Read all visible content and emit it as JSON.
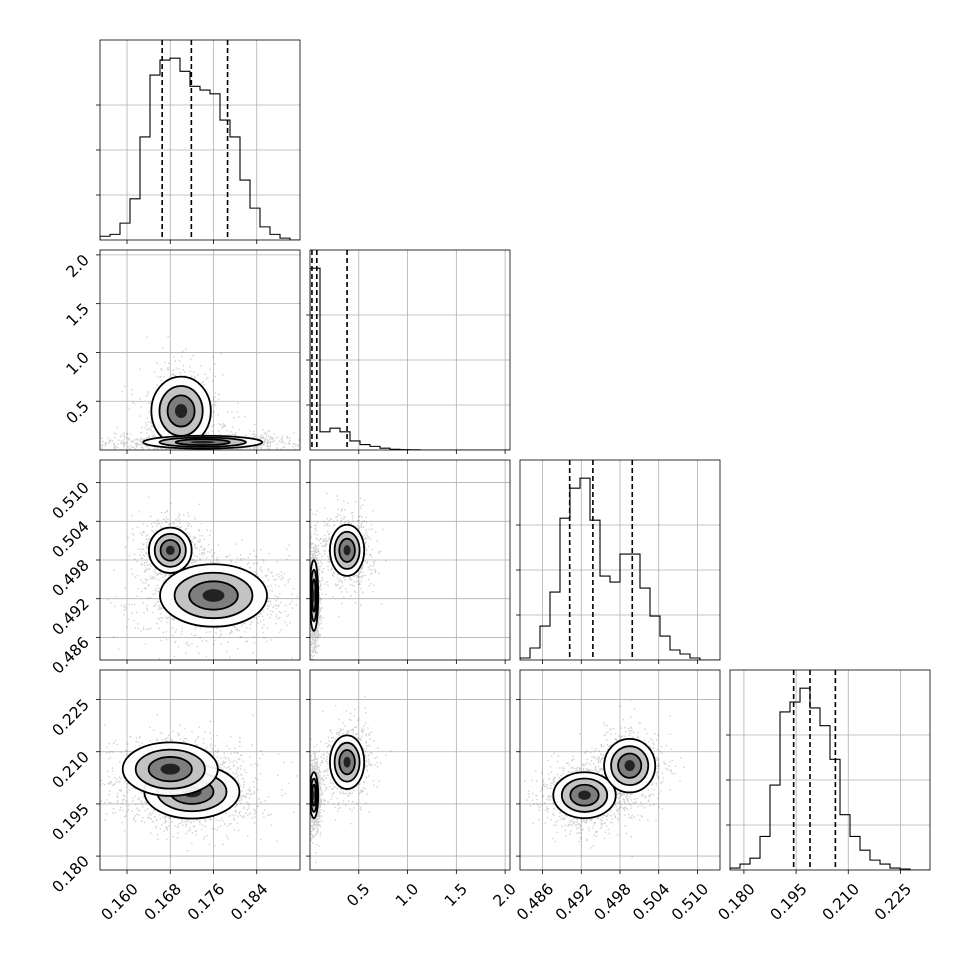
{
  "chart_data": {
    "type": "corner",
    "grid": true,
    "parameters": [
      {
        "range": [
          0.155,
          0.192
        ],
        "ticks": [
          0.16,
          0.168,
          0.176,
          0.184
        ],
        "tick_labels": [
          "0.160",
          "0.168",
          "0.176",
          "0.184"
        ],
        "quantiles": [
          0.1665,
          0.1719,
          0.1786
        ]
      },
      {
        "range": [
          0.0,
          2.05
        ],
        "ticks": [
          0.5,
          1.0,
          1.5,
          2.0
        ],
        "tick_labels": [
          "0.5",
          "1.0",
          "1.5",
          "2.0"
        ],
        "quantiles": [
          0.02,
          0.07,
          0.38
        ]
      },
      {
        "range": [
          0.4825,
          0.5135
        ],
        "ticks": [
          0.486,
          0.492,
          0.498,
          0.504,
          0.51
        ],
        "tick_labels": [
          "0.486",
          "0.492",
          "0.498",
          "0.504",
          "0.510"
        ],
        "quantiles": [
          0.4902,
          0.4938,
          0.4999
        ]
      },
      {
        "range": [
          0.176,
          0.2335
        ],
        "ticks": [
          0.18,
          0.195,
          0.21,
          0.225
        ],
        "tick_labels": [
          "0.180",
          "0.195",
          "0.210",
          "0.225"
        ],
        "quantiles": [
          0.1943,
          0.199,
          0.2063
        ]
      }
    ],
    "histograms": [
      {
        "bins": [
          0.155,
          0.15685,
          0.1587,
          0.16055,
          0.1624,
          0.16425,
          0.1661,
          0.16795,
          0.1698,
          0.17165,
          0.1735,
          0.17535,
          0.1772,
          0.17905,
          0.1809,
          0.18275,
          0.1846,
          0.18645,
          0.1883,
          0.19015,
          0.192
        ],
        "counts": [
          2,
          3,
          9,
          22,
          55,
          88,
          96,
          97,
          90,
          82,
          80,
          78,
          64,
          55,
          32,
          17,
          7,
          3,
          1,
          0
        ]
      },
      {
        "bins": [
          0.0,
          0.1025,
          0.205,
          0.3075,
          0.41,
          0.5125,
          0.615,
          0.7175,
          0.82,
          0.9225,
          1.025,
          1.1275,
          1.23,
          1.3325,
          1.435,
          1.5375,
          1.64,
          1.7425,
          1.845,
          1.9475,
          2.05
        ],
        "counts": [
          100,
          10,
          12,
          10,
          5,
          3,
          2,
          1,
          0.4,
          0.2,
          0.1,
          0,
          0,
          0,
          0,
          0,
          0,
          0,
          0,
          0
        ]
      },
      {
        "bins": [
          0.4825,
          0.48405,
          0.4856,
          0.48715,
          0.4887,
          0.49025,
          0.4918,
          0.49335,
          0.4949,
          0.49645,
          0.498,
          0.49955,
          0.5011,
          0.50265,
          0.5042,
          0.50575,
          0.5073,
          0.50885,
          0.5104,
          0.51195,
          0.5135
        ],
        "counts": [
          1,
          6,
          17,
          34,
          71,
          86,
          91,
          70,
          42,
          39,
          53,
          53,
          36,
          22,
          12,
          5,
          3,
          1,
          0,
          0
        ]
      },
      {
        "bins": [
          0.176,
          0.17888,
          0.18175,
          0.18463,
          0.1875,
          0.19038,
          0.19325,
          0.19613,
          0.199,
          0.20188,
          0.20475,
          0.20763,
          0.2105,
          0.21338,
          0.21625,
          0.21913,
          0.222,
          0.22488,
          0.22775,
          0.23063,
          0.2335
        ],
        "counts": [
          1,
          3,
          6,
          17,
          43,
          80,
          85,
          92,
          82,
          73,
          56,
          28,
          17,
          10,
          5,
          3,
          1,
          0.5,
          0,
          0
        ]
      }
    ],
    "density_modes": {
      "pair_1_0": [
        {
          "x": 0.17,
          "y": 0.4,
          "sx": 0.0025,
          "sy": 0.16,
          "w": 0.35
        },
        {
          "x": 0.174,
          "y": 0.08,
          "sx": 0.005,
          "sy": 0.03,
          "w": 0.65
        }
      ],
      "pair_2_0": [
        {
          "x": 0.168,
          "y": 0.4995,
          "sx": 0.0018,
          "sy": 0.0016,
          "w": 0.4
        },
        {
          "x": 0.176,
          "y": 0.4925,
          "sx": 0.0045,
          "sy": 0.0022,
          "w": 0.6
        }
      ],
      "pair_2_1": [
        {
          "x": 0.04,
          "y": 0.4925,
          "sx": 0.02,
          "sy": 0.0025,
          "w": 0.6
        },
        {
          "x": 0.38,
          "y": 0.4995,
          "sx": 0.08,
          "sy": 0.0018,
          "w": 0.4
        }
      ],
      "pair_3_0": [
        {
          "x": 0.172,
          "y": 0.1985,
          "sx": 0.004,
          "sy": 0.0035,
          "w": 0.65
        },
        {
          "x": 0.168,
          "y": 0.205,
          "sx": 0.004,
          "sy": 0.0035,
          "w": 0.35
        }
      ],
      "pair_3_1": [
        {
          "x": 0.04,
          "y": 0.1975,
          "sx": 0.02,
          "sy": 0.003,
          "w": 0.65
        },
        {
          "x": 0.38,
          "y": 0.207,
          "sx": 0.08,
          "sy": 0.0035,
          "w": 0.35
        }
      ],
      "pair_3_2": [
        {
          "x": 0.4925,
          "y": 0.1975,
          "sx": 0.0022,
          "sy": 0.003,
          "w": 0.6
        },
        {
          "x": 0.4995,
          "y": 0.206,
          "sx": 0.0018,
          "sy": 0.0035,
          "w": 0.4
        }
      ]
    }
  }
}
